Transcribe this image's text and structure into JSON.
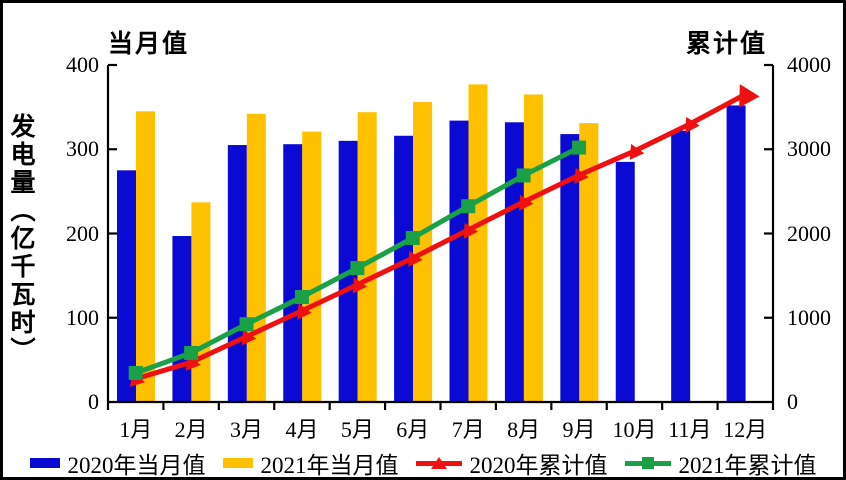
{
  "chart_data": {
    "type": "bar+line-combo",
    "title": "",
    "left_axis": {
      "title": "当月值",
      "label": "发电量（亿千瓦时）",
      "ticks": [
        0,
        100,
        200,
        300,
        400
      ],
      "min": 0,
      "max": 400
    },
    "right_axis": {
      "title": "累计值",
      "ticks": [
        0,
        1000,
        2000,
        3000,
        4000
      ],
      "min": 0,
      "max": 4000
    },
    "categories": [
      "1月",
      "2月",
      "3月",
      "4月",
      "5月",
      "6月",
      "7月",
      "8月",
      "9月",
      "10月",
      "11月",
      "12月"
    ],
    "series": [
      {
        "name": "2020年当月值",
        "type": "bar",
        "axis": "left",
        "color": "#0a0ad2",
        "marker": "rect",
        "values": [
          275,
          197,
          305,
          306,
          310,
          316,
          334,
          332,
          318,
          285,
          322,
          352
        ]
      },
      {
        "name": "2021年当月值",
        "type": "bar",
        "axis": "left",
        "color": "#ffc000",
        "marker": "rect",
        "values": [
          345,
          237,
          342,
          321,
          344,
          356,
          377,
          365,
          331
        ]
      },
      {
        "name": "2020年累计值",
        "type": "line",
        "axis": "right",
        "color": "#ee1111",
        "marker": "triangle",
        "values": [
          275,
          472,
          777,
          1083,
          1393,
          1709,
          2043,
          2375,
          2693,
          2978,
          3300,
          3652
        ]
      },
      {
        "name": "2021年累计值",
        "type": "line",
        "axis": "right",
        "color": "#1aa046",
        "marker": "square",
        "values": [
          345,
          582,
          924,
          1246,
          1590,
          1947,
          2324,
          2689,
          3020
        ]
      }
    ],
    "legend_position": "bottom",
    "grid": false,
    "colors": {
      "axis": "#000000",
      "background": "#ffffff"
    }
  }
}
